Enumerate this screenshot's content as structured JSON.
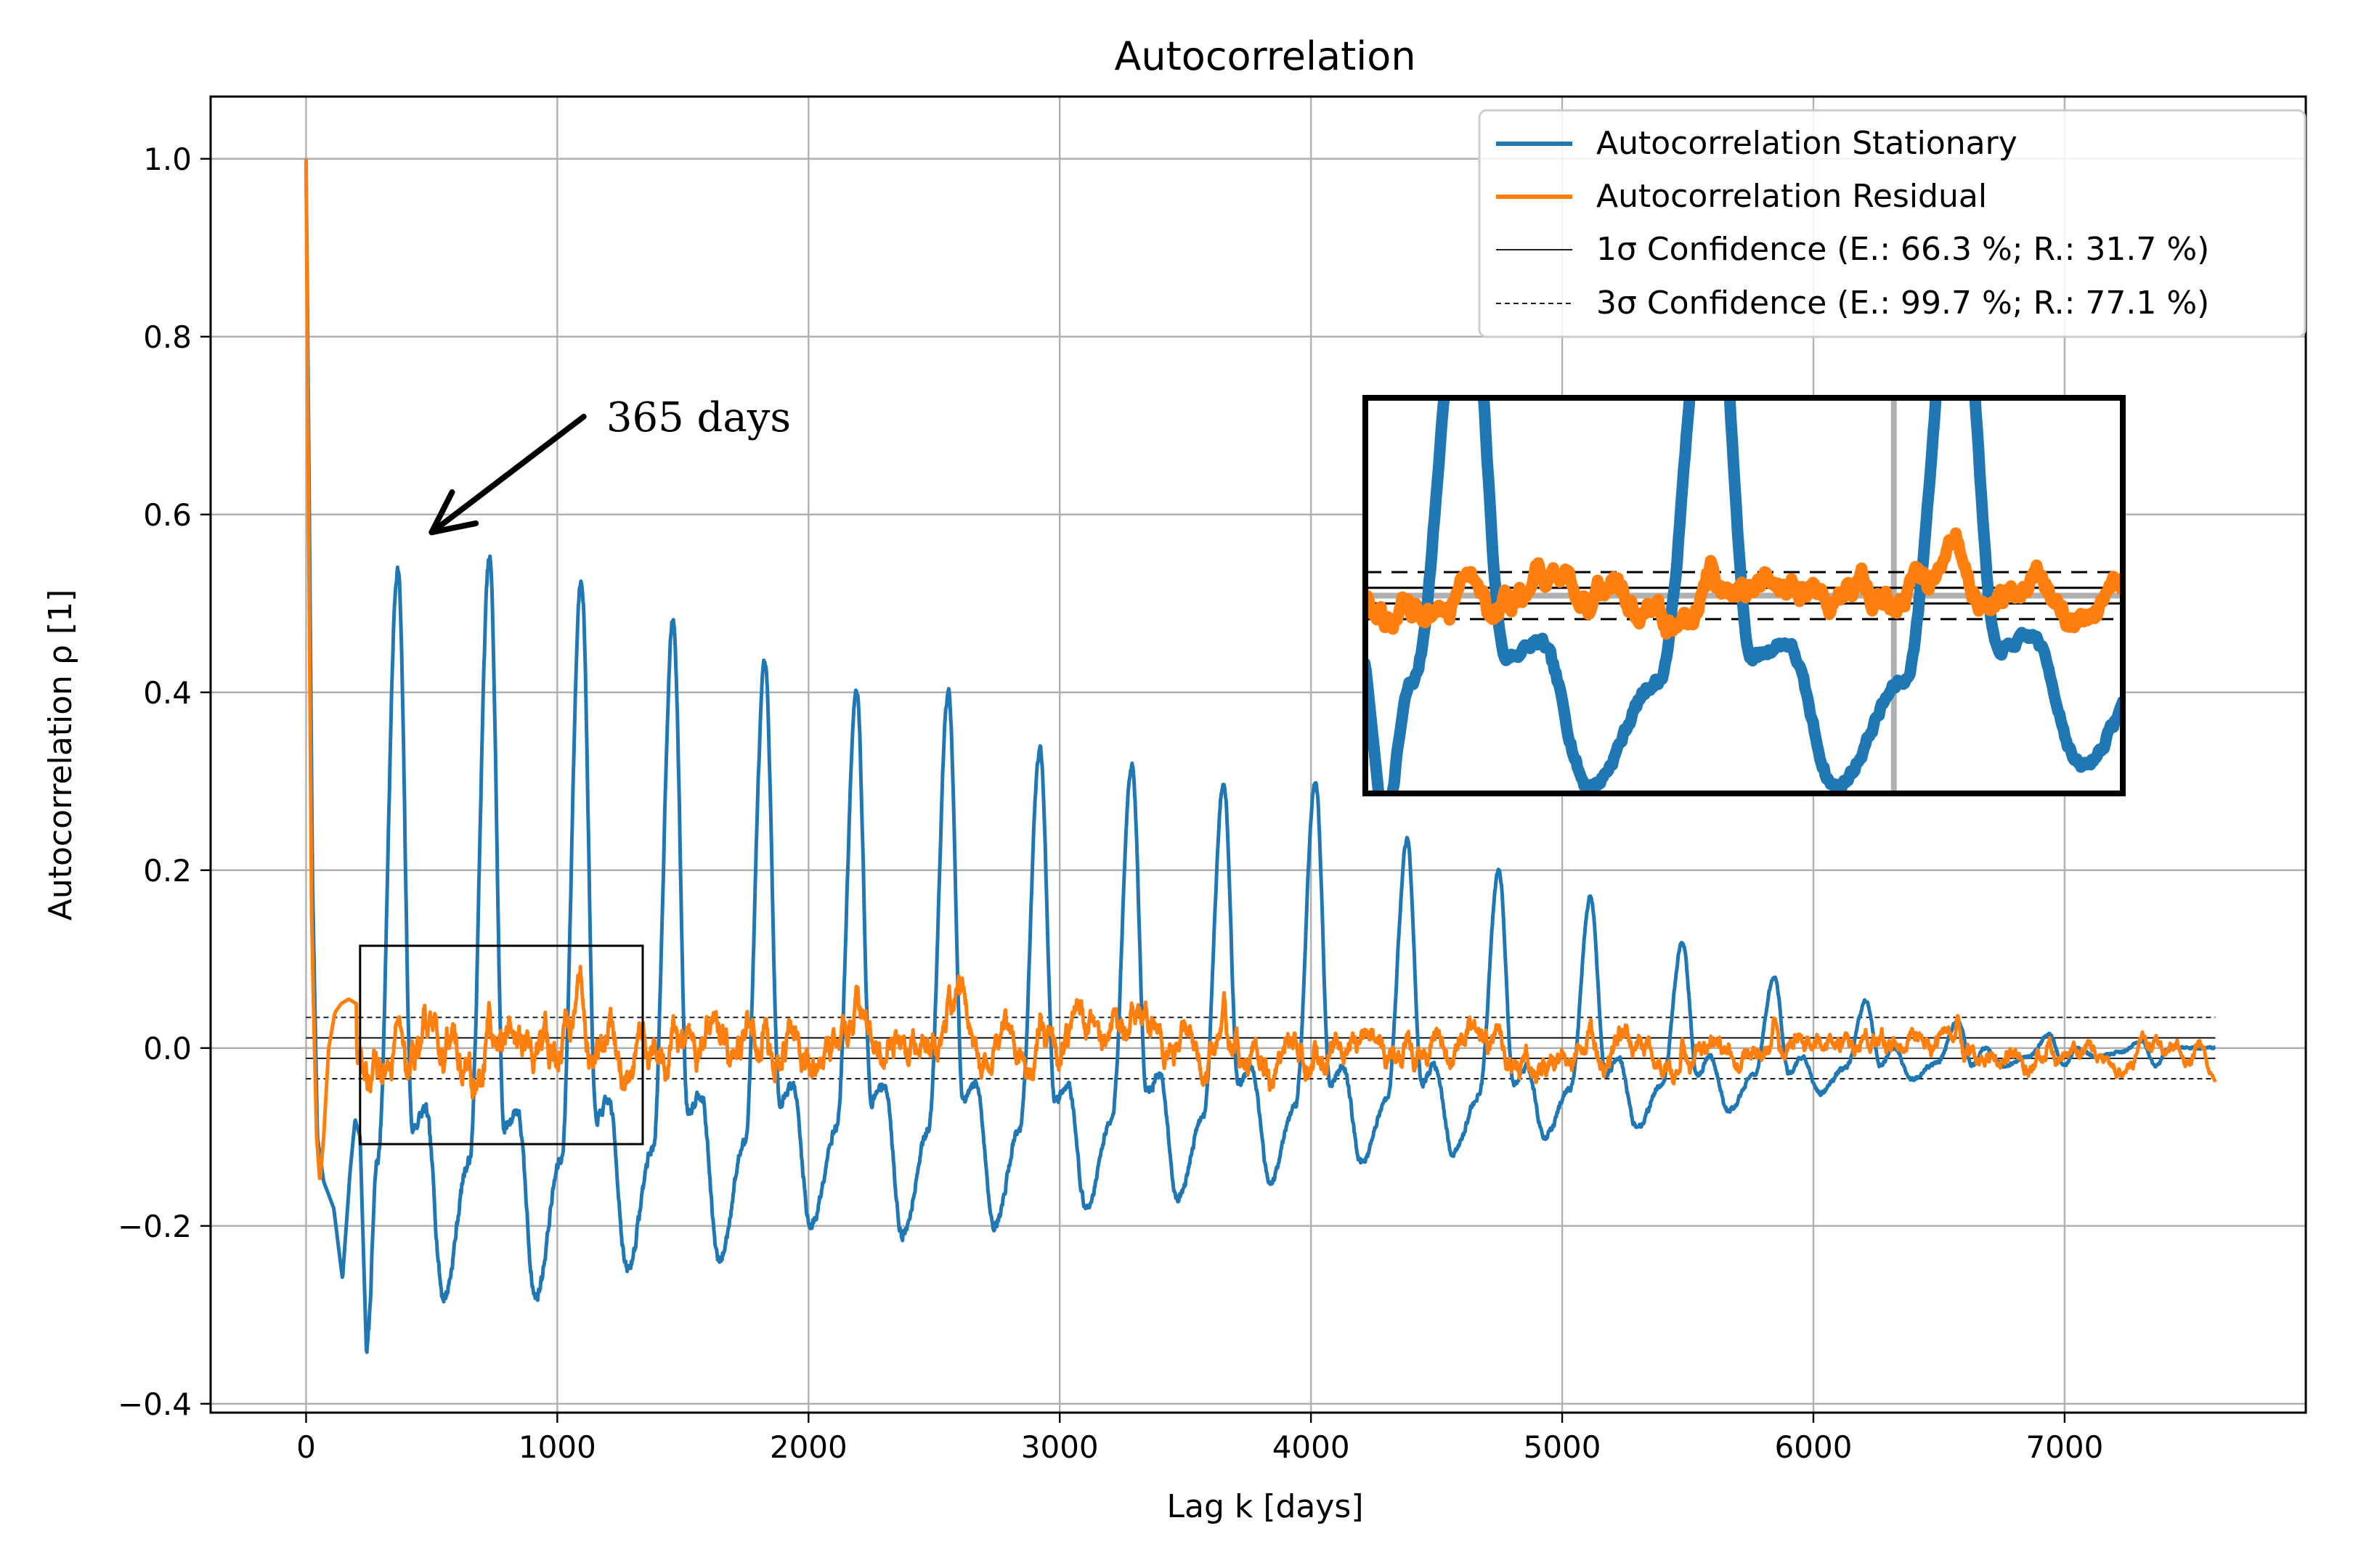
{
  "chart_data": {
    "type": "line",
    "title": "Autocorrelation",
    "xlabel": "Lag k [days]",
    "ylabel": "Autocorrelation ρ [1]",
    "xlim": [
      -380,
      7960
    ],
    "ylim": [
      -0.41,
      1.07
    ],
    "x_ticks": [
      0,
      1000,
      2000,
      3000,
      4000,
      5000,
      6000,
      7000
    ],
    "x_tick_labels": [
      "0",
      "1000",
      "2000",
      "3000",
      "4000",
      "5000",
      "6000",
      "7000"
    ],
    "y_ticks": [
      -0.4,
      -0.2,
      0.0,
      0.2,
      0.4,
      0.6,
      0.8,
      1.0
    ],
    "y_tick_labels": [
      "−0.4",
      "−0.2",
      "0.0",
      "0.2",
      "0.4",
      "0.6",
      "0.8",
      "1.0"
    ],
    "grid": true,
    "legend_position": "top-right",
    "lag_max": 7600,
    "series": [
      {
        "name": "Autocorrelation Stationary",
        "color": "#1f77b4",
        "start": [
          [
            0,
            1.0
          ],
          [
            10,
            0.7
          ],
          [
            25,
            0.2
          ],
          [
            45,
            -0.1
          ],
          [
            70,
            -0.15
          ],
          [
            110,
            -0.18
          ],
          [
            145,
            -0.26
          ],
          [
            175,
            -0.14
          ],
          [
            195,
            -0.08
          ],
          [
            215,
            -0.1
          ],
          [
            240,
            -0.34
          ]
        ],
        "seasonal_peaks": [
          0.54,
          0.55,
          0.53,
          0.48,
          0.43,
          0.4,
          0.4,
          0.335,
          0.32,
          0.3,
          0.3,
          0.235,
          0.2,
          0.17,
          0.12,
          0.08,
          0.052,
          0.03,
          0.015,
          0.008,
          0.005
        ],
        "seasonal_troughs": [
          -0.28,
          -0.28,
          -0.28,
          -0.25,
          -0.24,
          -0.2,
          -0.21,
          -0.2,
          -0.18,
          -0.17,
          -0.15,
          -0.13,
          -0.12,
          -0.1,
          -0.09,
          -0.07,
          -0.05,
          -0.035,
          -0.02,
          -0.01
        ],
        "mid_dips": [
          -0.07,
          -0.07,
          -0.06,
          -0.05,
          -0.04,
          -0.04,
          -0.04,
          -0.04,
          -0.03,
          -0.02,
          -0.02,
          -0.02,
          -0.02,
          -0.01,
          -0.01,
          -0.01,
          0.0,
          0.0,
          0.0,
          0.0
        ],
        "period_days": 365.25
      },
      {
        "name": "Autocorrelation Residual",
        "color": "#ff7f0e",
        "start": [
          [
            0,
            1.0
          ],
          [
            10,
            0.6
          ],
          [
            22,
            0.15
          ],
          [
            32,
            0.02
          ],
          [
            42,
            -0.1
          ],
          [
            55,
            -0.15
          ],
          [
            70,
            -0.1
          ],
          [
            90,
            0.0
          ],
          [
            115,
            0.04
          ],
          [
            140,
            0.05
          ],
          [
            170,
            0.055
          ],
          [
            200,
            0.05
          ]
        ],
        "amplitude": 0.04,
        "seasonal_bumps": 0.05,
        "end_value": -0.038
      }
    ],
    "confidence": [
      {
        "name": "1σ Confidence (E.: 66.3 %; R.: 31.7 %)",
        "value": 0.0115,
        "style": "solid",
        "color": "#000000"
      },
      {
        "name": "3σ Confidence (E.: 99.7 %; R.: 77.1 %)",
        "value": 0.0345,
        "style": "dashed",
        "color": "#000000"
      }
    ],
    "annotation": {
      "text": "365 days",
      "text_at": [
        1195,
        0.71
      ],
      "arrow_from": [
        1105,
        0.71
      ],
      "arrow_to": [
        500,
        0.58
      ]
    },
    "zoom_region": {
      "x": [
        215,
        1340
      ],
      "y": [
        -0.108,
        0.115
      ],
      "inset_ylim": [
        -0.29,
        0.29
      ]
    }
  }
}
